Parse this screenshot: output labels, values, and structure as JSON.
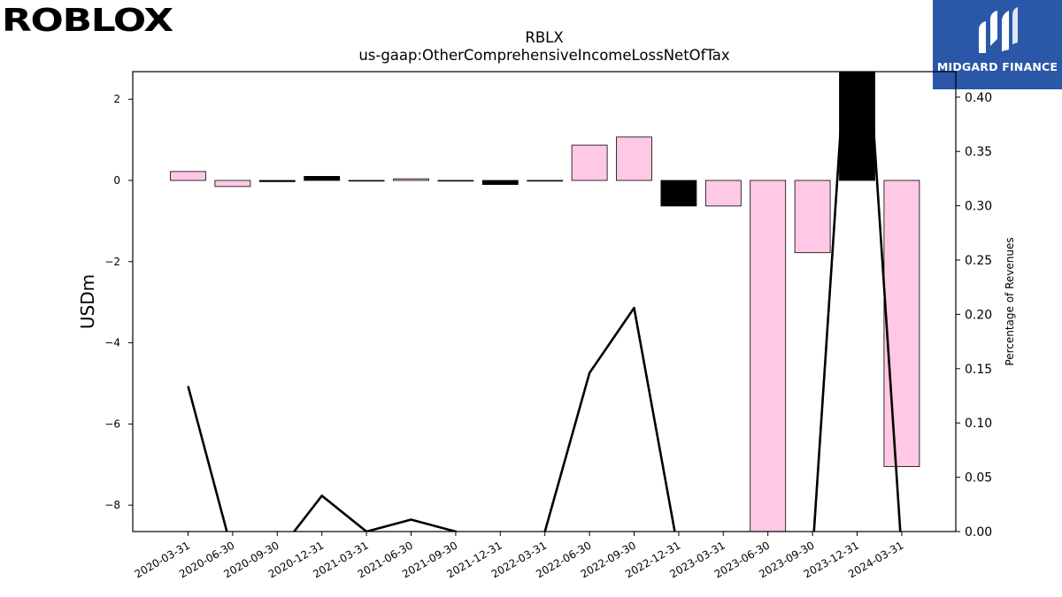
{
  "brand": {
    "left_logo_text": "ROBLOX",
    "right_logo_text": "MIDGARD FINANCE",
    "right_logo_color": "#2a57a8"
  },
  "chart_data": {
    "type": "bar",
    "title": "RBLX",
    "subtitle": "us-gaap:OtherComprehensiveIncomeLossNetOfTax",
    "ylabel": "USDm",
    "ylabel_right": "Percentage of Revenues",
    "categories": [
      "2020-03-31",
      "2020-06-30",
      "2020-09-30",
      "2020-12-31",
      "2021-03-31",
      "2021-06-30",
      "2021-09-30",
      "2021-12-31",
      "2022-03-31",
      "2022-06-30",
      "2022-09-30",
      "2022-12-31",
      "2023-03-31",
      "2023-06-30",
      "2023-09-30",
      "2023-12-31",
      "2024-03-31"
    ],
    "values": [
      0.22,
      -0.15,
      -0.03,
      0.1,
      -0.01,
      0.04,
      -0.01,
      -0.1,
      -0.01,
      0.87,
      1.07,
      -0.63,
      -0.63,
      -8.7,
      -1.78,
      2.7,
      -7.05
    ],
    "bar_colors": [
      "#ffc8e4",
      "#ffc8e4",
      "#000000",
      "#000000",
      "#000000",
      "#ffc8e4",
      "#000000",
      "#000000",
      "#000000",
      "#ffc8e4",
      "#ffc8e4",
      "#000000",
      "#ffc8e4",
      "#ffc8e4",
      "#ffc8e4",
      "#000000",
      "#ffc8e4"
    ],
    "ylim": [
      -8.65,
      2.68
    ],
    "yticks": [
      2,
      0,
      -2,
      -4,
      -6,
      -8
    ],
    "ytick_labels": [
      "2",
      "0",
      "−2",
      "−4",
      "−6",
      "−8"
    ],
    "line_series": {
      "values": [
        0.134,
        -0.02,
        -0.02,
        0.033,
        0.0,
        0.011,
        0.0,
        -0.02,
        0.0,
        0.146,
        0.206,
        -0.02,
        -0.02,
        -0.02,
        -0.02,
        0.6,
        -0.02
      ],
      "color": "#000000"
    },
    "y2lim": [
      0.0,
      0.4235
    ],
    "y2ticks": [
      0.0,
      0.05,
      0.1,
      0.15,
      0.2,
      0.25,
      0.3,
      0.35,
      0.4
    ],
    "y2tick_labels": [
      "0.00",
      "0.05",
      "0.10",
      "0.15",
      "0.20",
      "0.25",
      "0.30",
      "0.35",
      "0.40"
    ],
    "grid": false
  }
}
